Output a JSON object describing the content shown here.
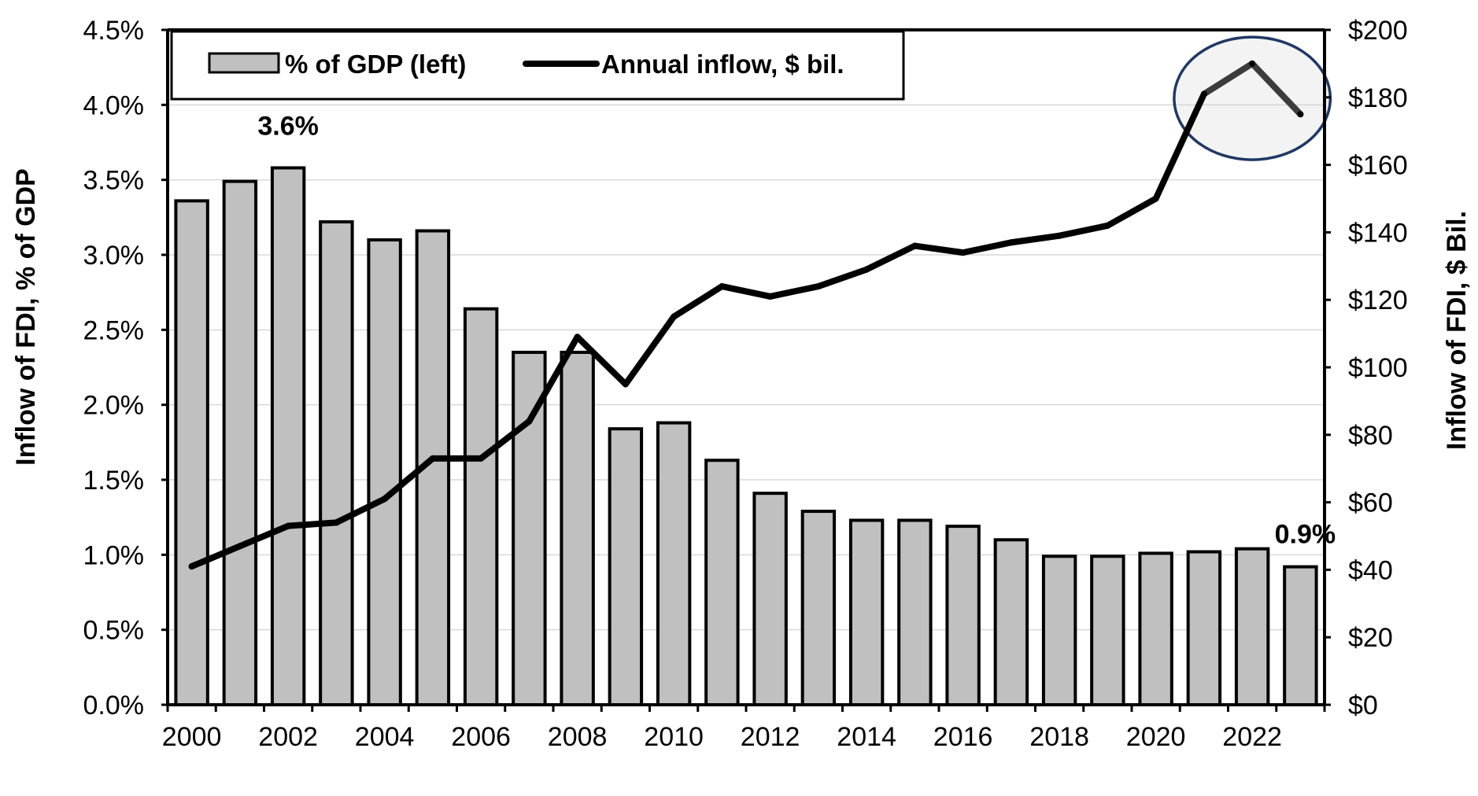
{
  "chart_data": {
    "type": "bar+line",
    "categories": [
      "2000",
      "2001",
      "2002",
      "2003",
      "2004",
      "2005",
      "2006",
      "2007",
      "2008",
      "2009",
      "2010",
      "2011",
      "2012",
      "2013",
      "2014",
      "2015",
      "2016",
      "2017",
      "2018",
      "2019",
      "2020",
      "2021",
      "2022",
      "2023"
    ],
    "x_tick_labels": [
      "2000",
      "2002",
      "2004",
      "2006",
      "2008",
      "2010",
      "2012",
      "2014",
      "2016",
      "2018",
      "2020",
      "2022"
    ],
    "series": [
      {
        "name": "% of GDP (left)",
        "type": "bar",
        "axis": "left",
        "values": [
          3.36,
          3.49,
          3.58,
          3.22,
          3.1,
          3.16,
          2.64,
          2.35,
          2.35,
          1.84,
          1.88,
          1.63,
          1.41,
          1.29,
          1.23,
          1.23,
          1.19,
          1.1,
          0.99,
          0.99,
          1.01,
          1.02,
          1.04,
          0.92
        ],
        "color": "#c0c0c0"
      },
      {
        "name": "Annual inflow, $ bil.",
        "type": "line",
        "axis": "right",
        "values": [
          41,
          47,
          53,
          54,
          61,
          73,
          73,
          84,
          109,
          95,
          115,
          124,
          121,
          124,
          129,
          136,
          134,
          137,
          139,
          142,
          150,
          181,
          190,
          175
        ],
        "color": "#000000"
      }
    ],
    "y_left": {
      "label": "Inflow of FDI, % of GDP",
      "min": 0,
      "max": 4.5,
      "ticks": [
        "0.0%",
        "0.5%",
        "1.0%",
        "1.5%",
        "2.0%",
        "2.5%",
        "3.0%",
        "3.5%",
        "4.0%",
        "4.5%"
      ]
    },
    "y_right": {
      "label": "Inflow of FDI, $ Bil.",
      "min": 0,
      "max": 200,
      "ticks": [
        "$0",
        "$20",
        "$40",
        "$60",
        "$80",
        "$100",
        "$120",
        "$140",
        "$160",
        "$180",
        "$200"
      ]
    },
    "annotations": [
      {
        "text": "3.6%",
        "category": "2002"
      },
      {
        "text": "0.9%",
        "category": "2023"
      }
    ],
    "highlight_ellipse_years": [
      "2021",
      "2022",
      "2023"
    ],
    "highlight_color": "#1f3864",
    "legend_position": "top-left",
    "grid": true
  }
}
